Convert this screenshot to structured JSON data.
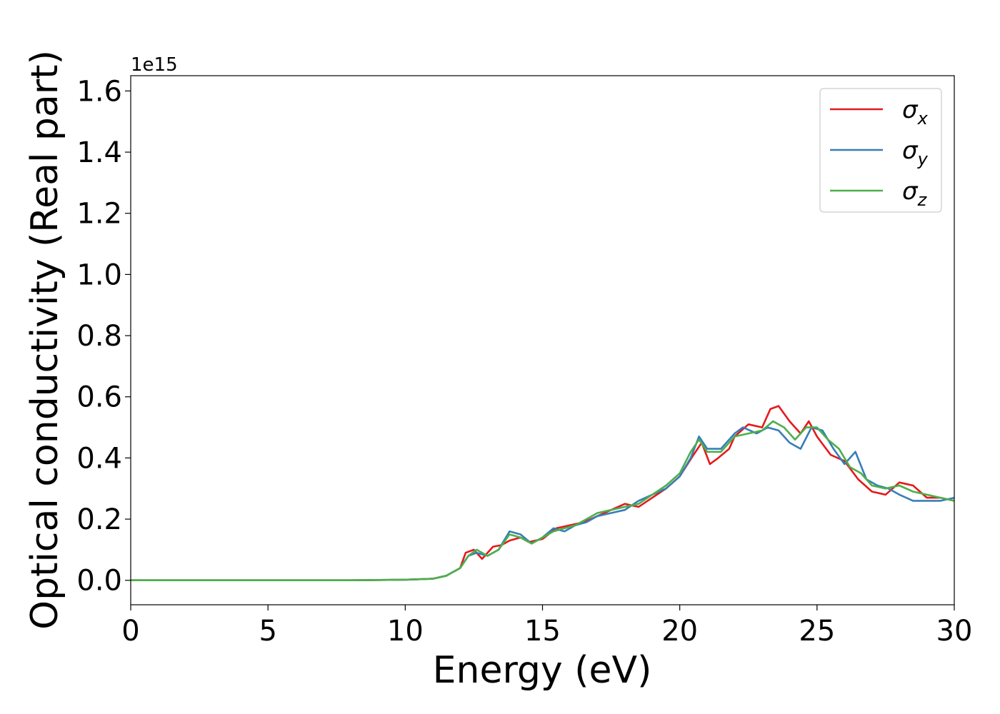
{
  "chart_data": {
    "type": "line",
    "title": "",
    "xlabel": "Energy (eV)",
    "ylabel": "Optical conductivity (Real part)",
    "y_offset_text": "1e15",
    "xlim": [
      0,
      30
    ],
    "ylim": [
      -0.08,
      1.65
    ],
    "x_ticks": [
      0,
      5,
      10,
      15,
      20,
      25,
      30
    ],
    "x_tick_labels": [
      "0",
      "5",
      "10",
      "15",
      "20",
      "25",
      "30"
    ],
    "y_ticks": [
      0.0,
      0.2,
      0.4,
      0.6,
      0.8,
      1.0,
      1.2,
      1.4,
      1.6
    ],
    "y_tick_labels": [
      "0.0",
      "0.2",
      "0.4",
      "0.6",
      "0.8",
      "1.0",
      "1.2",
      "1.4",
      "1.6"
    ],
    "grid": false,
    "legend_position": "top-right",
    "series": [
      {
        "name": "σ",
        "subscript": "x",
        "color": "#e41a1c",
        "points": [
          [
            0,
            0
          ],
          [
            8,
            0
          ],
          [
            10,
            0.002
          ],
          [
            11,
            0.005
          ],
          [
            11.5,
            0.015
          ],
          [
            12,
            0.04
          ],
          [
            12.2,
            0.09
          ],
          [
            12.5,
            0.1
          ],
          [
            12.8,
            0.07
          ],
          [
            13.2,
            0.11
          ],
          [
            13.5,
            0.115
          ],
          [
            13.8,
            0.13
          ],
          [
            14.2,
            0.14
          ],
          [
            14.5,
            0.125
          ],
          [
            15,
            0.135
          ],
          [
            15.5,
            0.17
          ],
          [
            16,
            0.18
          ],
          [
            16.5,
            0.19
          ],
          [
            17,
            0.21
          ],
          [
            17.5,
            0.23
          ],
          [
            18,
            0.25
          ],
          [
            18.5,
            0.24
          ],
          [
            19,
            0.27
          ],
          [
            19.5,
            0.3
          ],
          [
            20,
            0.34
          ],
          [
            20.5,
            0.41
          ],
          [
            20.8,
            0.45
          ],
          [
            21.1,
            0.38
          ],
          [
            21.4,
            0.4
          ],
          [
            21.8,
            0.43
          ],
          [
            22,
            0.47
          ],
          [
            22.5,
            0.51
          ],
          [
            23,
            0.5
          ],
          [
            23.3,
            0.56
          ],
          [
            23.6,
            0.57
          ],
          [
            24,
            0.52
          ],
          [
            24.4,
            0.48
          ],
          [
            24.7,
            0.52
          ],
          [
            25,
            0.47
          ],
          [
            25.5,
            0.41
          ],
          [
            26,
            0.39
          ],
          [
            26.5,
            0.33
          ],
          [
            27,
            0.29
          ],
          [
            27.5,
            0.28
          ],
          [
            28,
            0.32
          ],
          [
            28.5,
            0.31
          ],
          [
            29,
            0.27
          ],
          [
            29.5,
            0.27
          ],
          [
            30,
            0.26
          ]
        ]
      },
      {
        "name": "σ",
        "subscript": "y",
        "color": "#377eb8",
        "points": [
          [
            0,
            0
          ],
          [
            8,
            0
          ],
          [
            10,
            0.002
          ],
          [
            11,
            0.005
          ],
          [
            11.5,
            0.015
          ],
          [
            12,
            0.04
          ],
          [
            12.3,
            0.08
          ],
          [
            12.6,
            0.09
          ],
          [
            13,
            0.08
          ],
          [
            13.4,
            0.1
          ],
          [
            13.8,
            0.16
          ],
          [
            14.2,
            0.15
          ],
          [
            14.6,
            0.12
          ],
          [
            15,
            0.14
          ],
          [
            15.4,
            0.17
          ],
          [
            15.8,
            0.16
          ],
          [
            16.2,
            0.18
          ],
          [
            16.6,
            0.19
          ],
          [
            17,
            0.21
          ],
          [
            17.5,
            0.22
          ],
          [
            18,
            0.23
          ],
          [
            18.5,
            0.26
          ],
          [
            19,
            0.28
          ],
          [
            19.5,
            0.3
          ],
          [
            20,
            0.34
          ],
          [
            20.4,
            0.4
          ],
          [
            20.7,
            0.47
          ],
          [
            21,
            0.43
          ],
          [
            21.5,
            0.43
          ],
          [
            22,
            0.48
          ],
          [
            22.3,
            0.5
          ],
          [
            22.8,
            0.48
          ],
          [
            23.2,
            0.5
          ],
          [
            23.6,
            0.49
          ],
          [
            24,
            0.45
          ],
          [
            24.4,
            0.43
          ],
          [
            24.8,
            0.5
          ],
          [
            25.2,
            0.49
          ],
          [
            25.6,
            0.43
          ],
          [
            26,
            0.38
          ],
          [
            26.4,
            0.42
          ],
          [
            26.8,
            0.33
          ],
          [
            27.2,
            0.31
          ],
          [
            27.6,
            0.3
          ],
          [
            28,
            0.28
          ],
          [
            28.5,
            0.26
          ],
          [
            29,
            0.26
          ],
          [
            29.5,
            0.26
          ],
          [
            30,
            0.27
          ]
        ]
      },
      {
        "name": "σ",
        "subscript": "z",
        "color": "#4daf4a",
        "points": [
          [
            0,
            0
          ],
          [
            8,
            0
          ],
          [
            10,
            0.002
          ],
          [
            11,
            0.005
          ],
          [
            11.5,
            0.015
          ],
          [
            12,
            0.04
          ],
          [
            12.3,
            0.08
          ],
          [
            12.6,
            0.1
          ],
          [
            13,
            0.08
          ],
          [
            13.4,
            0.1
          ],
          [
            13.8,
            0.15
          ],
          [
            14.2,
            0.14
          ],
          [
            14.6,
            0.12
          ],
          [
            15,
            0.14
          ],
          [
            15.4,
            0.16
          ],
          [
            15.8,
            0.17
          ],
          [
            16.2,
            0.18
          ],
          [
            16.6,
            0.2
          ],
          [
            17,
            0.22
          ],
          [
            17.5,
            0.23
          ],
          [
            18,
            0.24
          ],
          [
            18.5,
            0.25
          ],
          [
            19,
            0.28
          ],
          [
            19.5,
            0.31
          ],
          [
            20,
            0.35
          ],
          [
            20.4,
            0.42
          ],
          [
            20.7,
            0.46
          ],
          [
            21,
            0.42
          ],
          [
            21.5,
            0.42
          ],
          [
            22,
            0.47
          ],
          [
            22.5,
            0.48
          ],
          [
            23,
            0.49
          ],
          [
            23.4,
            0.52
          ],
          [
            23.8,
            0.5
          ],
          [
            24.2,
            0.46
          ],
          [
            24.6,
            0.5
          ],
          [
            25,
            0.5
          ],
          [
            25.4,
            0.46
          ],
          [
            25.8,
            0.43
          ],
          [
            26.2,
            0.37
          ],
          [
            26.6,
            0.35
          ],
          [
            27,
            0.31
          ],
          [
            27.5,
            0.3
          ],
          [
            28,
            0.31
          ],
          [
            28.5,
            0.29
          ],
          [
            29,
            0.28
          ],
          [
            29.5,
            0.27
          ],
          [
            30,
            0.26
          ]
        ]
      }
    ]
  }
}
